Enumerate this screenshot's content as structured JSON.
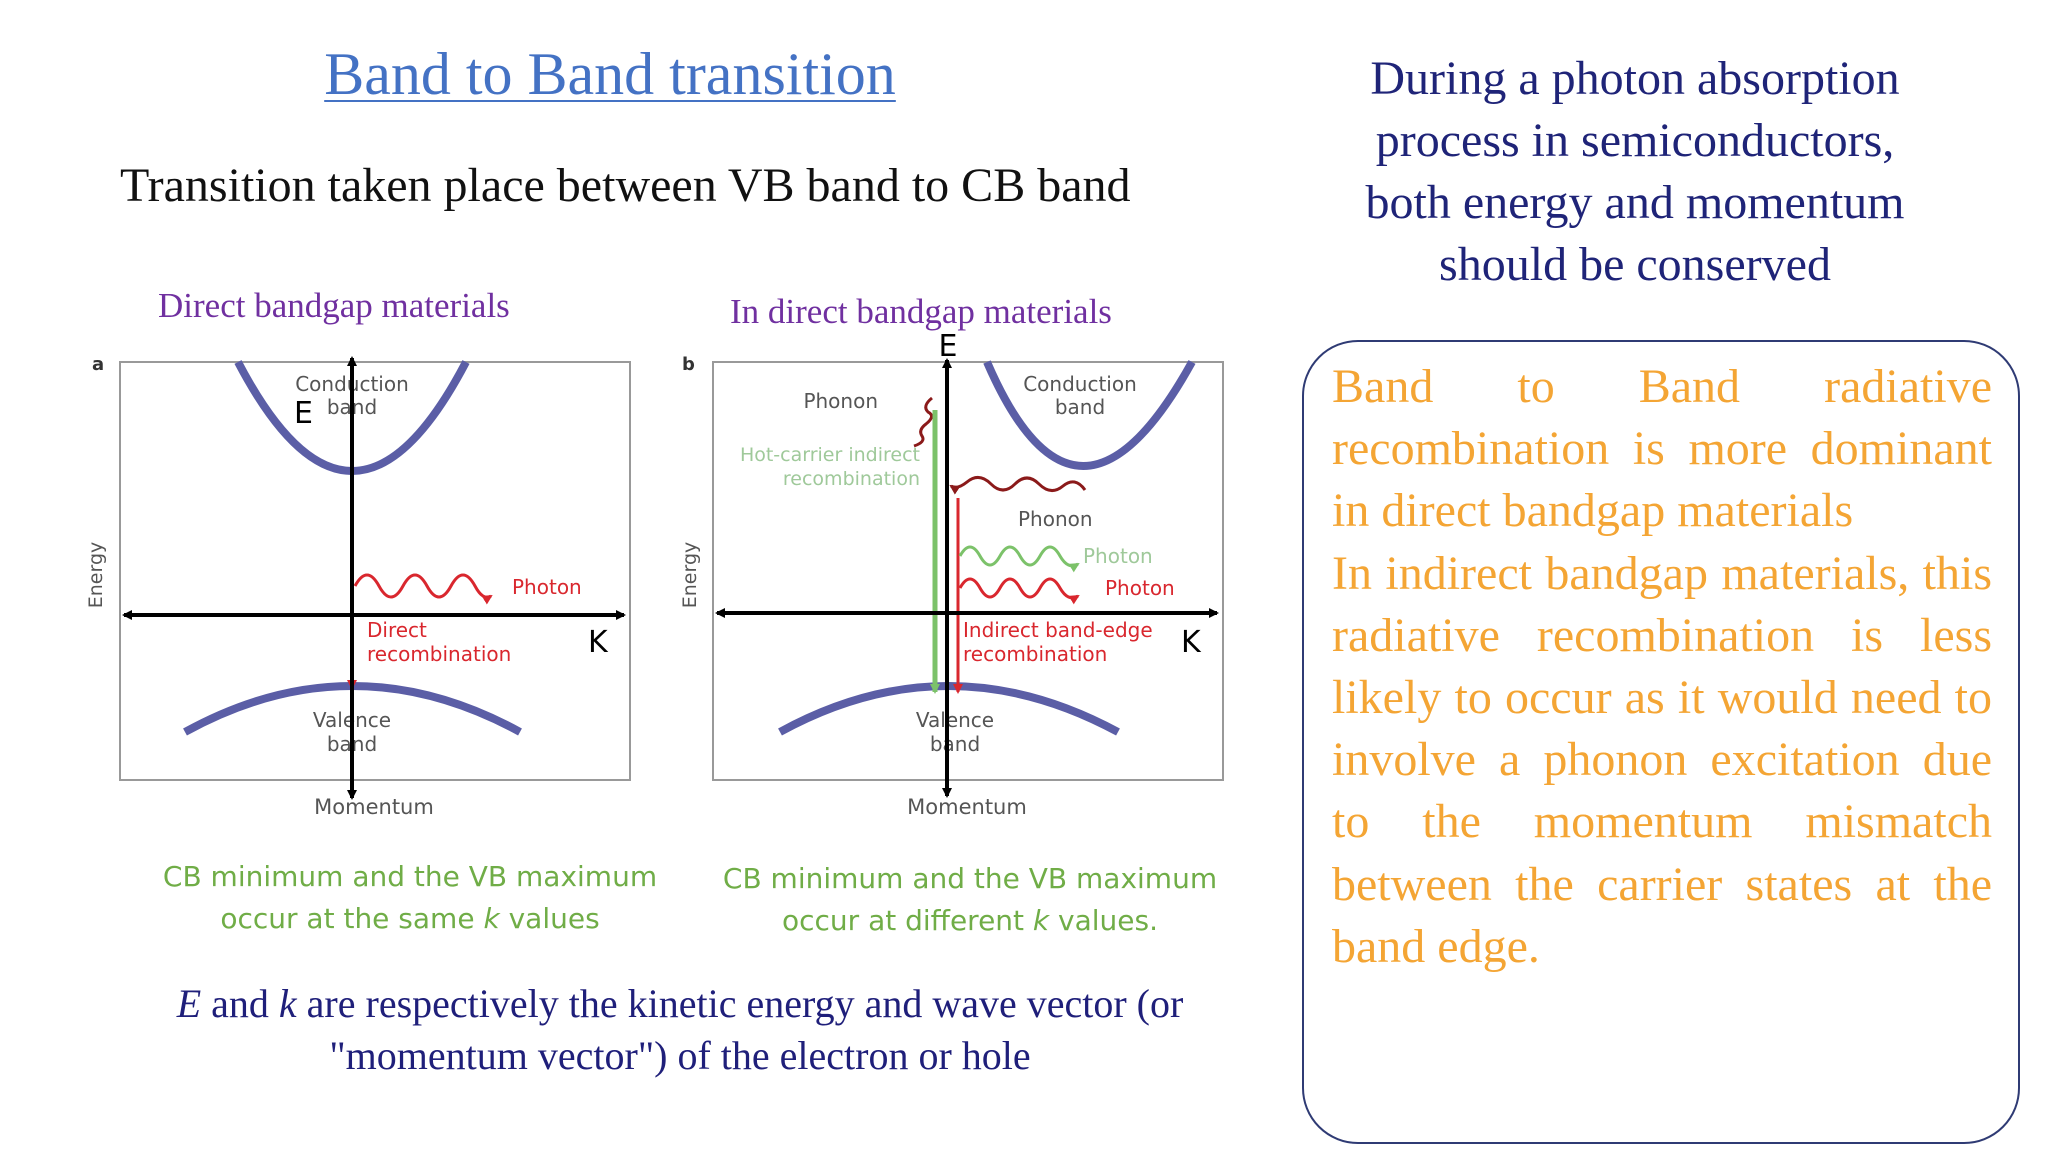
{
  "slide": {
    "title": "Band to Band transition",
    "subtitle": "Transition taken place between VB band to CB band"
  },
  "direct_panel": {
    "heading": "Direct bandgap materials",
    "panel_letter": "a",
    "conduction_band": [
      "Conduction",
      "band"
    ],
    "valence_band": [
      "Valence",
      "band"
    ],
    "photon": "Photon",
    "recombination": [
      "Direct",
      "recombination"
    ],
    "energy_axis": "Energy",
    "momentum_axis": "Momentum",
    "e_label": "E",
    "k_label": "K",
    "caption_line1": "CB minimum and the VB maximum",
    "caption_line2_pre": "occur at the same ",
    "caption_k": "k",
    "caption_line2_post": " values"
  },
  "indirect_panel": {
    "heading": "In direct bandgap materials",
    "panel_letter": "b",
    "conduction_band": [
      "Conduction",
      "band"
    ],
    "valence_band": [
      "Valence",
      "band"
    ],
    "phonon_top": "Phonon",
    "hot_carrier": [
      "Hot-carrier indirect",
      "recombination"
    ],
    "phonon_mid": "Phonon",
    "photon_green": "Photon",
    "photon_red": "Photon",
    "recombination": [
      "Indirect band-edge",
      "recombination"
    ],
    "energy_axis": "Energy",
    "momentum_axis": "Momentum",
    "e_label": "E",
    "k_label": "K",
    "caption_line1": "CB minimum and the VB  maximum",
    "caption_line2_pre": "occur at different ",
    "caption_k": "k",
    "caption_line2_post": " values."
  },
  "ek_note": {
    "e": "E",
    "and": " and ",
    "k": "k",
    "rest_line1": " are respectively the kinetic energy and wave vector (or",
    "line2": "\"momentum vector\") of the electron or hole"
  },
  "intro": {
    "line1": "During a photon absorption",
    "line2": "process in semiconductors,",
    "line3": "both energy and momentum",
    "line4": "should be conserved"
  },
  "box": {
    "para1": "Band to Band radiative recombination is more dominant in direct bandgap materials",
    "para2": "In indirect bandgap materials, this radiative recombination is less likely to occur as it would need to involve a phonon excitation due to the momentum mismatch between the carrier states at the band edge."
  },
  "colors": {
    "title": "#4472c4",
    "material_label": "#7030a0",
    "caption_green": "#70ad47",
    "band_curve": "#5b5ea6",
    "transition_red": "#d9272e",
    "hot_carrier_green": "#7cc26a",
    "phonon_dark_red": "#8b1a1a",
    "box_text": "#f4a534",
    "navy_text": "#1f2478"
  }
}
